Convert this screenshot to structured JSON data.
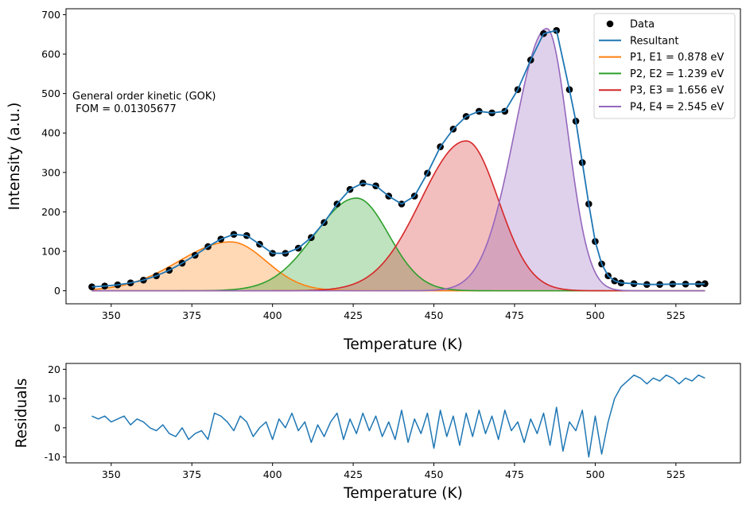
{
  "chart_data": [
    {
      "type": "line",
      "xlabel": "Temperature (K)",
      "ylabel": "Intensity  (a.u.)",
      "xlim": [
        336,
        545
      ],
      "ylim": [
        -33,
        715
      ],
      "x_ticks": [
        350,
        375,
        400,
        425,
        450,
        475,
        500,
        525
      ],
      "y_ticks": [
        0,
        100,
        200,
        300,
        400,
        500,
        600,
        700
      ],
      "annotation": "General order kinetic (GOK)\n FOM = 0.01305677",
      "legend_position": "top-right",
      "grid": false,
      "data_series": {
        "name": "Data",
        "marker": "circle",
        "color": "#000000",
        "x": [
          344,
          348,
          352,
          356,
          360,
          364,
          368,
          372,
          376,
          380,
          384,
          388,
          392,
          396,
          400,
          404,
          408,
          412,
          416,
          420,
          424,
          428,
          432,
          436,
          440,
          444,
          448,
          452,
          456,
          460,
          464,
          468,
          472,
          476,
          480,
          484,
          488,
          492,
          494,
          496,
          498,
          500,
          502,
          504,
          506,
          508,
          512,
          516,
          520,
          524,
          528,
          532,
          534
        ],
        "y": [
          10,
          12,
          15,
          20,
          27,
          38,
          52,
          70,
          90,
          112,
          131,
          143,
          140,
          118,
          95,
          95,
          108,
          135,
          173,
          220,
          257,
          273,
          266,
          240,
          220,
          240,
          298,
          365,
          410,
          442,
          455,
          451,
          455,
          510,
          585,
          652,
          660,
          510,
          430,
          325,
          220,
          125,
          68,
          38,
          25,
          20,
          18,
          16,
          16,
          17,
          17,
          17,
          18
        ]
      },
      "series": [
        {
          "name": "Resultant",
          "color": "#1f77b4"
        },
        {
          "name": "P1, E1 = 0.878 eV",
          "color": "#ff7f0e",
          "fill": "#c6d9ea",
          "peak_x": 387,
          "peak_y": 124,
          "width_left": 16,
          "width_right": 11,
          "fill_alpha": 0.3
        },
        {
          "name": "P2, E2 = 1.239 eV",
          "color": "#2ca02c",
          "fill": "#fdd9b3",
          "peak_x": 426,
          "peak_y": 235,
          "width_left": 13,
          "width_right": 10,
          "fill_alpha": 0.3
        },
        {
          "name": "P3, E3 = 1.656 eV",
          "color": "#d62728",
          "fill": "#bfe2bf",
          "peak_x": 460,
          "peak_y": 380,
          "width_left": 14,
          "width_right": 10,
          "fill_alpha": 0.3
        },
        {
          "name": "P4, E4 = 2.545 eV",
          "color": "#9467bd",
          "fill": "#efb7b9",
          "peak_x": 485,
          "peak_y": 665,
          "width_left": 10,
          "width_right": 6.5,
          "fill_alpha": 0.3
        }
      ]
    },
    {
      "type": "line",
      "xlabel": "Temperature (K)",
      "ylabel": "Residuals",
      "xlim": [
        336,
        545
      ],
      "ylim": [
        -12,
        22
      ],
      "x_ticks": [
        350,
        375,
        400,
        425,
        450,
        475,
        500,
        525
      ],
      "y_ticks": [
        -10,
        0,
        10,
        20
      ],
      "series": [
        {
          "name": "Residuals",
          "color": "#1f77b4",
          "x": [
            344,
            346,
            348,
            350,
            352,
            354,
            356,
            358,
            360,
            362,
            364,
            366,
            368,
            370,
            372,
            374,
            376,
            378,
            380,
            382,
            384,
            386,
            388,
            390,
            392,
            394,
            396,
            398,
            400,
            402,
            404,
            406,
            408,
            410,
            412,
            414,
            416,
            418,
            420,
            422,
            424,
            426,
            428,
            430,
            432,
            434,
            436,
            438,
            440,
            442,
            444,
            446,
            448,
            450,
            452,
            454,
            456,
            458,
            460,
            462,
            464,
            466,
            468,
            470,
            472,
            474,
            476,
            478,
            480,
            482,
            484,
            486,
            488,
            490,
            492,
            494,
            496,
            498,
            500,
            502,
            504,
            506,
            508,
            510,
            512,
            514,
            516,
            518,
            520,
            522,
            524,
            526,
            528,
            530,
            532,
            534
          ],
          "y": [
            4,
            3,
            4,
            2,
            3,
            4,
            1,
            3,
            2,
            0,
            -1,
            1,
            -2,
            -3,
            0,
            -4,
            -2,
            -1,
            -4,
            5,
            4,
            2,
            -1,
            4,
            2,
            -3,
            0,
            2,
            -4,
            3,
            0,
            5,
            -1,
            2,
            -5,
            1,
            -3,
            2,
            5,
            -4,
            3,
            -2,
            5,
            -1,
            4,
            -3,
            2,
            -4,
            6,
            -5,
            3,
            -2,
            5,
            -7,
            6,
            -3,
            4,
            -6,
            5,
            -3,
            6,
            -2,
            4,
            -4,
            6,
            -1,
            2,
            -5,
            3,
            -2,
            5,
            -6,
            7,
            -8,
            2,
            -1,
            6,
            -10,
            4,
            -9,
            2,
            10,
            14,
            16,
            18,
            17,
            15,
            17,
            16,
            18,
            17,
            15,
            17,
            16,
            18,
            17
          ]
        }
      ]
    }
  ]
}
